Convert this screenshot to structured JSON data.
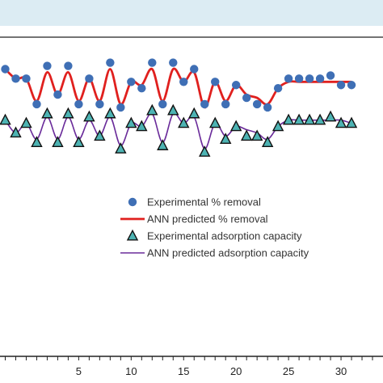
{
  "colors": {
    "band": "#dcecf3",
    "removal_marker": "#3f6fb5",
    "removal_line": "#e0201e",
    "capacity_marker_fill": "#4db3b3",
    "capacity_marker_stroke": "#111111",
    "capacity_line": "#6a2b9a",
    "axis": "#222222"
  },
  "chart_data": {
    "type": "line",
    "title": "",
    "xlabel": "",
    "ylabel": "",
    "xlim": [
      -2.5,
      34
    ],
    "ylim": [
      0,
      100
    ],
    "grid": false,
    "legend_position": "center-right",
    "x_ticks": [
      5,
      10,
      15,
      20,
      25,
      30
    ],
    "series": [
      {
        "name": "Experimental % removal",
        "kind": "marker-circle",
        "x": [
          -2,
          -1,
          0,
          1,
          2,
          3,
          4,
          5,
          6,
          7,
          8,
          9,
          10,
          11,
          12,
          13,
          14,
          15,
          16,
          17,
          18,
          19,
          20,
          21,
          22,
          23,
          24,
          25,
          26,
          27,
          28,
          29,
          30,
          31
        ],
        "y": [
          90,
          87,
          87,
          79,
          91,
          82,
          91,
          79,
          87,
          79,
          92,
          78,
          86,
          84,
          92,
          79,
          92,
          86,
          90,
          79,
          86,
          79,
          85,
          81,
          79,
          78,
          84,
          87,
          87,
          87,
          87,
          88,
          85,
          85
        ]
      },
      {
        "name": "ANN predicted % removal",
        "kind": "line",
        "x": [
          -2,
          -1,
          0,
          1,
          2,
          3,
          4,
          5,
          6,
          7,
          8,
          9,
          10,
          11,
          12,
          13,
          14,
          15,
          16,
          17,
          18,
          19,
          20,
          21,
          22,
          23,
          24,
          25,
          26,
          27,
          28,
          29,
          30,
          31
        ],
        "y": [
          90,
          87,
          87,
          80,
          89,
          82,
          89,
          80,
          87,
          80,
          90,
          79,
          86,
          85,
          90,
          80,
          90,
          86,
          89,
          78,
          86,
          80,
          85,
          82,
          81,
          79,
          84,
          86,
          86,
          86,
          86,
          86,
          86,
          86
        ]
      },
      {
        "name": "Experimental adsorption capacity",
        "kind": "marker-triangle",
        "x": [
          -2,
          -1,
          0,
          1,
          2,
          3,
          4,
          5,
          6,
          7,
          8,
          9,
          10,
          11,
          12,
          13,
          14,
          15,
          16,
          17,
          18,
          19,
          20,
          21,
          22,
          23,
          24,
          25,
          26,
          27,
          28,
          29,
          30,
          31
        ],
        "y": [
          74,
          70,
          73,
          67,
          76,
          67,
          76,
          67,
          75,
          69,
          76,
          65,
          73,
          72,
          77,
          66,
          77,
          73,
          76,
          64,
          73,
          68,
          72,
          69,
          69,
          67,
          72,
          74,
          74,
          74,
          74,
          75,
          73,
          73
        ]
      },
      {
        "name": "ANN predicted adsorption capacity",
        "kind": "line",
        "x": [
          -2,
          -1,
          0,
          1,
          2,
          3,
          4,
          5,
          6,
          7,
          8,
          9,
          10,
          11,
          12,
          13,
          14,
          15,
          16,
          17,
          18,
          19,
          20,
          21,
          22,
          23,
          24,
          25,
          26,
          27,
          28,
          29,
          30,
          31
        ],
        "y": [
          74,
          70,
          73,
          68,
          75,
          68,
          75,
          68,
          74,
          69,
          75,
          66,
          73,
          72,
          76,
          67,
          76,
          73,
          75,
          65,
          73,
          69,
          72,
          71,
          70,
          68,
          72,
          74,
          74,
          74,
          74,
          74,
          74,
          73
        ]
      }
    ]
  }
}
